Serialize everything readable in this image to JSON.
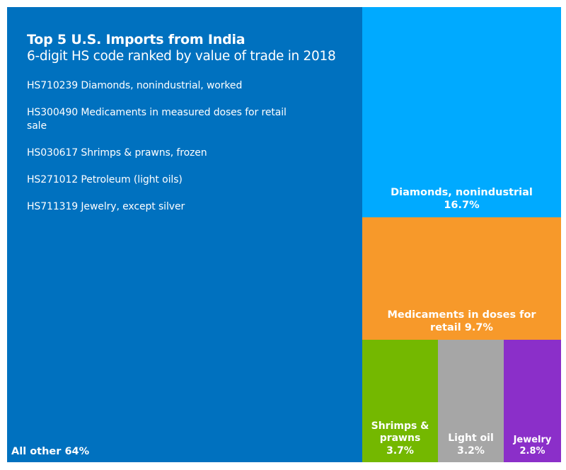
{
  "chart_data": {
    "type": "treemap",
    "title": "Top 5 U.S. Imports from India",
    "subtitle": "6-digit HS code ranked by value of trade in 2018",
    "legend_items": [
      "HS710239 Diamonds, nonindustrial, worked",
      "HS300490 Medicaments in measured doses for retail sale",
      "HS030617 Shrimps & prawns, frozen",
      "HS271012 Petroleum (light oils)",
      "HS711319 Jewelry, except silver"
    ],
    "tiles": [
      {
        "id": "all-other",
        "label": "All other 64%",
        "value": 64,
        "color": "#0071BF"
      },
      {
        "id": "diamonds",
        "label": "Diamonds, nonindustrial\n16.7%",
        "value": 16.7,
        "color": "#00AAFF"
      },
      {
        "id": "medicaments",
        "label": "Medicaments in doses for\nretail 9.7%",
        "value": 9.7,
        "color": "#F7992A"
      },
      {
        "id": "shrimps",
        "label": "Shrimps &\nprawns\n3.7%",
        "value": 3.7,
        "color": "#74B800"
      },
      {
        "id": "light-oil",
        "label": "Light oil\n3.2%",
        "value": 3.2,
        "color": "#A6A6A6"
      },
      {
        "id": "jewelry",
        "label": "Jewelry\n2.8%",
        "value": 2.8,
        "color": "#8B2FC9"
      }
    ]
  }
}
